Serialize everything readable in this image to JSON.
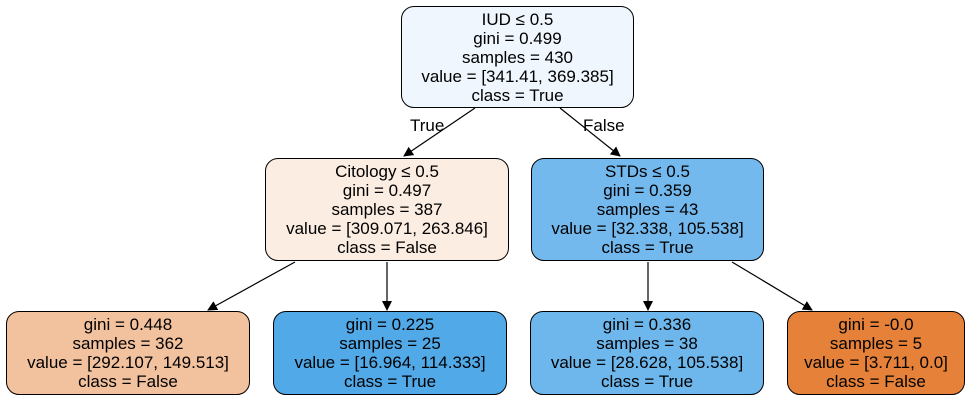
{
  "colors": {
    "root": "#eff6fd",
    "citology": "#fcede2",
    "stds": "#74b9ee",
    "leaf_448": "#f2c19e",
    "leaf_225": "#52a9e8",
    "leaf_336": "#6eb7ec",
    "leaf_00": "#e58139"
  },
  "edge_labels": {
    "true_label": "True",
    "false_label": "False"
  },
  "nodes": {
    "root": {
      "split": "IUD ≤ 0.5",
      "gini": "gini = 0.499",
      "samples": "samples = 430",
      "value": "value = [341.41, 369.385]",
      "class": "class = True"
    },
    "citology": {
      "split": "Citology ≤ 0.5",
      "gini": "gini = 0.497",
      "samples": "samples = 387",
      "value": "value = [309.071, 263.846]",
      "class": "class = False"
    },
    "stds": {
      "split": "STDs ≤ 0.5",
      "gini": "gini = 0.359",
      "samples": "samples = 43",
      "value": "value = [32.338, 105.538]",
      "class": "class = True"
    },
    "leaf_448": {
      "gini": "gini = 0.448",
      "samples": "samples = 362",
      "value": "value = [292.107, 149.513]",
      "class": "class = False"
    },
    "leaf_225": {
      "gini": "gini = 0.225",
      "samples": "samples = 25",
      "value": "value = [16.964, 114.333]",
      "class": "class = True"
    },
    "leaf_336": {
      "gini": "gini = 0.336",
      "samples": "samples = 38",
      "value": "value = [28.628, 105.538]",
      "class": "class = True"
    },
    "leaf_00": {
      "gini": "gini = -0.0",
      "samples": "samples = 5",
      "value": "value = [3.711, 0.0]",
      "class": "class = False"
    }
  }
}
